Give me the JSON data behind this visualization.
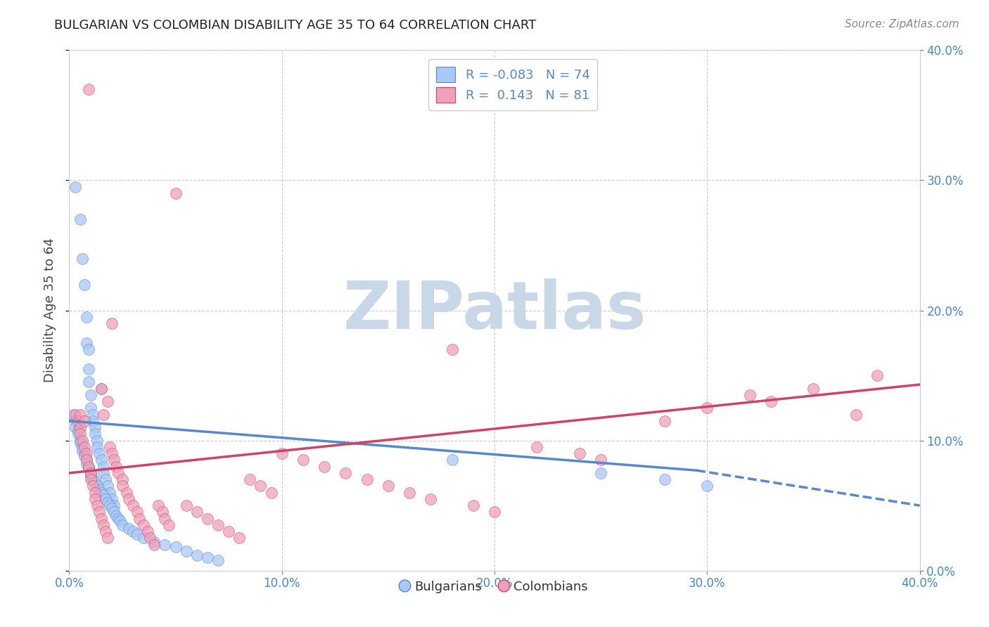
{
  "title": "BULGARIAN VS COLOMBIAN DISABILITY AGE 35 TO 64 CORRELATION CHART",
  "source": "Source: ZipAtlas.com",
  "ylabel": "Disability Age 35 to 64",
  "xlim": [
    0.0,
    0.4
  ],
  "ylim": [
    0.0,
    0.4
  ],
  "color_bulgarian": "#a8c8f8",
  "color_colombian": "#f0a0b8",
  "color_trendline_bulgarian": "#5588cc",
  "color_trendline_colombian": "#cc4466",
  "color_axis_labels": "#4488cc",
  "color_title": "#222222",
  "color_source": "#888888",
  "watermark_text": "ZIPatlas",
  "watermark_color": "#c8d8e8",
  "bg_color": "#ffffff",
  "grid_color": "#cccccc",
  "bg_x": [
    0.003,
    0.005,
    0.006,
    0.007,
    0.008,
    0.008,
    0.009,
    0.009,
    0.009,
    0.01,
    0.01,
    0.011,
    0.011,
    0.012,
    0.012,
    0.013,
    0.013,
    0.014,
    0.015,
    0.015,
    0.016,
    0.016,
    0.017,
    0.018,
    0.019,
    0.02,
    0.021,
    0.002,
    0.003,
    0.003,
    0.004,
    0.004,
    0.005,
    0.005,
    0.006,
    0.006,
    0.007,
    0.007,
    0.008,
    0.008,
    0.009,
    0.009,
    0.01,
    0.01,
    0.011,
    0.012,
    0.013,
    0.014,
    0.015,
    0.016,
    0.017,
    0.018,
    0.019,
    0.02,
    0.021,
    0.022,
    0.023,
    0.024,
    0.025,
    0.028,
    0.03,
    0.032,
    0.035,
    0.04,
    0.045,
    0.05,
    0.055,
    0.06,
    0.065,
    0.07,
    0.18,
    0.25,
    0.28,
    0.3
  ],
  "bg_y": [
    0.295,
    0.27,
    0.24,
    0.22,
    0.195,
    0.175,
    0.17,
    0.155,
    0.145,
    0.135,
    0.125,
    0.12,
    0.115,
    0.11,
    0.105,
    0.1,
    0.095,
    0.09,
    0.085,
    0.14,
    0.08,
    0.075,
    0.07,
    0.065,
    0.06,
    0.055,
    0.05,
    0.12,
    0.115,
    0.11,
    0.108,
    0.105,
    0.1,
    0.098,
    0.095,
    0.092,
    0.09,
    0.088,
    0.085,
    0.082,
    0.08,
    0.078,
    0.075,
    0.072,
    0.07,
    0.068,
    0.065,
    0.062,
    0.06,
    0.058,
    0.055,
    0.052,
    0.05,
    0.048,
    0.045,
    0.042,
    0.04,
    0.038,
    0.035,
    0.032,
    0.03,
    0.028,
    0.025,
    0.022,
    0.02,
    0.018,
    0.015,
    0.012,
    0.01,
    0.008,
    0.085,
    0.075,
    0.07,
    0.065
  ],
  "co_x": [
    0.003,
    0.004,
    0.005,
    0.005,
    0.006,
    0.007,
    0.008,
    0.008,
    0.009,
    0.01,
    0.01,
    0.011,
    0.012,
    0.012,
    0.013,
    0.014,
    0.015,
    0.015,
    0.016,
    0.017,
    0.018,
    0.019,
    0.02,
    0.02,
    0.021,
    0.022,
    0.023,
    0.025,
    0.025,
    0.027,
    0.028,
    0.03,
    0.032,
    0.033,
    0.035,
    0.037,
    0.038,
    0.04,
    0.042,
    0.044,
    0.045,
    0.047,
    0.05,
    0.055,
    0.06,
    0.065,
    0.07,
    0.075,
    0.08,
    0.085,
    0.09,
    0.095,
    0.1,
    0.11,
    0.12,
    0.13,
    0.14,
    0.15,
    0.16,
    0.17,
    0.18,
    0.19,
    0.2,
    0.22,
    0.24,
    0.25,
    0.28,
    0.3,
    0.32,
    0.33,
    0.35,
    0.37,
    0.38,
    0.005,
    0.007,
    0.009,
    0.016,
    0.018
  ],
  "co_y": [
    0.12,
    0.115,
    0.11,
    0.105,
    0.1,
    0.095,
    0.09,
    0.085,
    0.08,
    0.075,
    0.07,
    0.065,
    0.06,
    0.055,
    0.05,
    0.045,
    0.04,
    0.14,
    0.035,
    0.03,
    0.025,
    0.095,
    0.09,
    0.19,
    0.085,
    0.08,
    0.075,
    0.07,
    0.065,
    0.06,
    0.055,
    0.05,
    0.045,
    0.04,
    0.035,
    0.03,
    0.025,
    0.02,
    0.05,
    0.045,
    0.04,
    0.035,
    0.29,
    0.05,
    0.045,
    0.04,
    0.035,
    0.03,
    0.025,
    0.07,
    0.065,
    0.06,
    0.09,
    0.085,
    0.08,
    0.075,
    0.07,
    0.065,
    0.06,
    0.055,
    0.17,
    0.05,
    0.045,
    0.095,
    0.09,
    0.085,
    0.115,
    0.125,
    0.135,
    0.13,
    0.14,
    0.12,
    0.15,
    0.12,
    0.115,
    0.37,
    0.12,
    0.13
  ],
  "trend_bg_x0": 0.0,
  "trend_bg_x1": 0.295,
  "trend_bg_x1_dash": 0.4,
  "trend_bg_y0": 0.115,
  "trend_bg_y1": 0.077,
  "trend_bg_y1_dash": 0.05,
  "trend_co_x0": 0.0,
  "trend_co_x1": 0.4,
  "trend_co_y0": 0.075,
  "trend_co_y1": 0.143
}
